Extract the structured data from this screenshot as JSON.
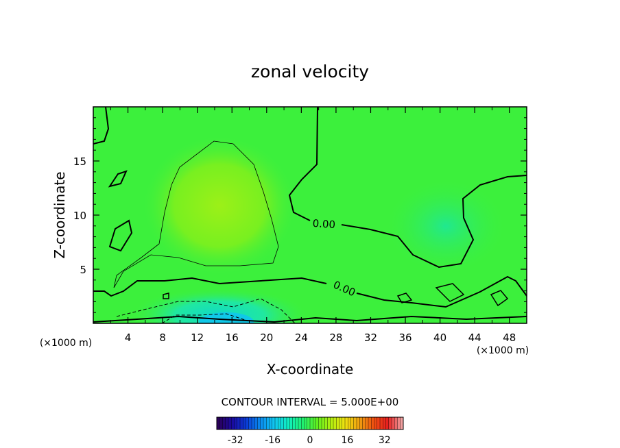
{
  "chart_data": {
    "type": "heatmap",
    "title": "zonal velocity",
    "xlabel": "X-coordinate",
    "ylabel": "Z-coordinate",
    "x_unit_label": "(×1000 m)",
    "x_range": [
      0,
      50
    ],
    "y_range": [
      0,
      20
    ],
    "x_ticks": [
      "4",
      "8",
      "12",
      "16",
      "20",
      "24",
      "28",
      "32",
      "36",
      "40",
      "44",
      "48"
    ],
    "x_tick_values": [
      4,
      8,
      12,
      16,
      20,
      24,
      28,
      32,
      36,
      40,
      44,
      48
    ],
    "y_ticks": [
      "5",
      "10",
      "15"
    ],
    "y_tick_values": [
      5,
      10,
      15
    ],
    "contour_labels": [
      "0.00",
      "0.00"
    ],
    "contour_interval_text": "CONTOUR INTERVAL = 5.000E+00",
    "colorbar": {
      "min": -40,
      "max": 40,
      "ticks": [
        "-32",
        "-16",
        "0",
        "16",
        "32"
      ],
      "tick_values": [
        -32,
        -16,
        0,
        16,
        32
      ],
      "palette": [
        "#2a005a",
        "#1a0aa0",
        "#0a3cd8",
        "#0a8cf0",
        "#10c8f0",
        "#10f0c0",
        "#20f070",
        "#60f020",
        "#b4f010",
        "#f0e010",
        "#f0a010",
        "#f05010",
        "#e82020",
        "#f0a0a0"
      ]
    },
    "field_note_colors": {
      "background": "#3cf03c",
      "high": "#8cf01c",
      "low": "#14e0b4"
    }
  }
}
